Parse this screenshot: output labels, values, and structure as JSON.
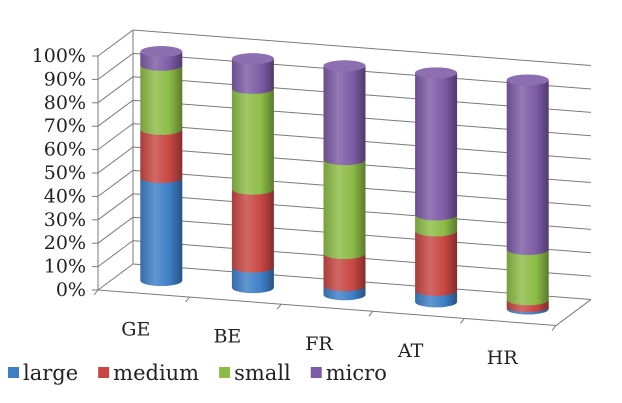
{
  "chart_data": {
    "type": "bar",
    "stacked": "percent",
    "categories": [
      "GE",
      "BE",
      "FR",
      "AT",
      "HR"
    ],
    "series": [
      {
        "name": "large",
        "color": "#3d7fc7",
        "values": [
          45,
          9,
          4,
          5,
          1
        ]
      },
      {
        "name": "medium",
        "color": "#c84743",
        "values": [
          21,
          34,
          14,
          26,
          3
        ]
      },
      {
        "name": "small",
        "color": "#8cbc46",
        "values": [
          28,
          44,
          41,
          7,
          22
        ]
      },
      {
        "name": "micro",
        "color": "#7d5ba6",
        "values": [
          6,
          13,
          41,
          62,
          74
        ]
      }
    ],
    "ylim": [
      0,
      100
    ],
    "yticks": [
      "0%",
      "10%",
      "20%",
      "30%",
      "40%",
      "50%",
      "60%",
      "70%",
      "80%",
      "90%",
      "100%"
    ],
    "title": "",
    "xlabel": "",
    "ylabel": "",
    "grid": true,
    "legend_position": "bottom-left"
  }
}
